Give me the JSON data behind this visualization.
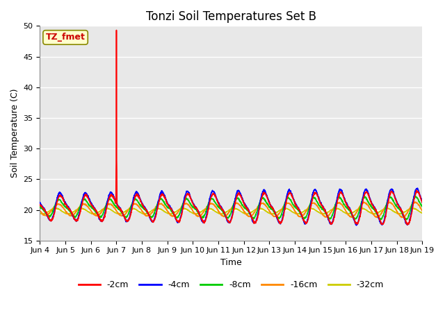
{
  "title": "Tonzi Soil Temperatures Set B",
  "xlabel": "Time",
  "ylabel": "Soil Temperature (C)",
  "ylim": [
    15,
    50
  ],
  "xlim_days": 15,
  "xtick_labels": [
    "Jun 4",
    "Jun 5",
    "Jun 6",
    "Jun 7",
    "Jun 8",
    "Jun 9",
    "Jun 10",
    "Jun 11",
    "Jun 12",
    "Jun 13",
    "Jun 14",
    "Jun 15",
    "Jun 16",
    "Jun 17",
    "Jun 18",
    "Jun 19"
  ],
  "annotation_text": "TZ_fmet",
  "annotation_color": "#cc0000",
  "annotation_bg": "#ffffcc",
  "annotation_border": "#888800",
  "series": [
    {
      "label": "-2cm",
      "color": "#ff0000",
      "lw": 1.2
    },
    {
      "label": "-4cm",
      "color": "#0000ff",
      "lw": 1.2
    },
    {
      "label": "-8cm",
      "color": "#00cc00",
      "lw": 1.2
    },
    {
      "label": "-16cm",
      "color": "#ff8800",
      "lw": 1.2
    },
    {
      "label": "-32cm",
      "color": "#cccc00",
      "lw": 1.2
    }
  ],
  "plot_bg": "#e8e8e8",
  "fig_bg": "#ffffff",
  "grid_color": "#ffffff",
  "title_fontsize": 12,
  "axis_label_fontsize": 9,
  "tick_fontsize": 8,
  "legend_fontsize": 9
}
